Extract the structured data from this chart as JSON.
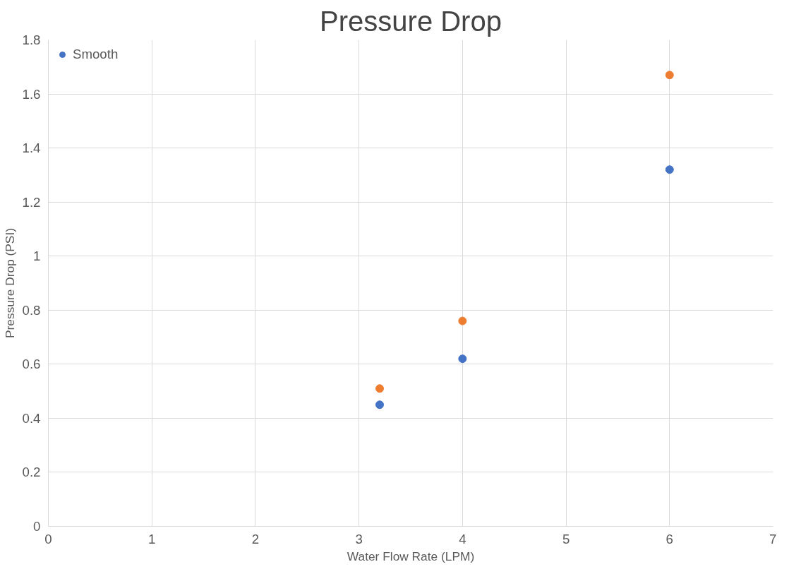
{
  "chart_data": {
    "type": "scatter",
    "title": "Pressure Drop",
    "xlabel": "Water Flow Rate (LPM)",
    "ylabel": "Pressure Drop (PSI)",
    "xlim": [
      0,
      7
    ],
    "xticks": [
      0,
      1,
      2,
      3,
      4,
      5,
      6,
      7
    ],
    "ylim": [
      0,
      1.8
    ],
    "yticks": [
      0,
      0.2,
      0.4,
      0.6,
      0.8,
      1,
      1.2,
      1.4,
      1.6,
      1.8
    ],
    "grid": true,
    "legend": "top left",
    "marker": "circle",
    "series": [
      {
        "name": "Smooth",
        "color": "#4472c4",
        "x": [
          3.2,
          4,
          6
        ],
        "values": [
          0.45,
          0.62,
          1.32
        ]
      },
      {
        "color": "#ed7d31",
        "x": [
          3.2,
          4,
          6
        ],
        "values": [
          0.51,
          0.76,
          1.67
        ]
      }
    ]
  }
}
